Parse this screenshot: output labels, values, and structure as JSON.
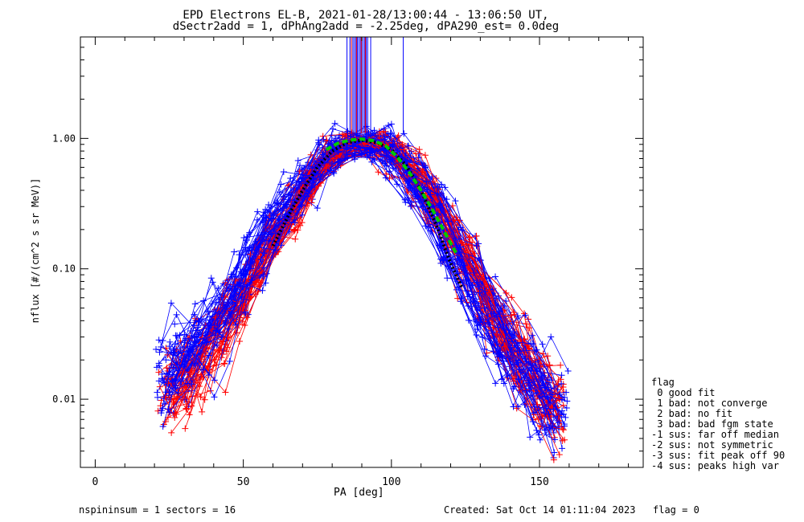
{
  "title_line1": "EPD Electrons EL-B, 2021-01-28/13:00:44 - 13:06:50 UT,",
  "title_line2": "dSectr2add = 1, dPhAng2add = -2.25deg, dPA290_est=   0.0deg",
  "footer": {
    "spins": "nspininsum =  1  sectors = 16",
    "created": "Created: Sat Oct 14 01:11:04 2023",
    "flag": "flag = 0"
  },
  "legend": {
    "title": "flag",
    "entries": [
      " 0 good fit",
      " 1 bad: not converge",
      " 2 bad: no fit",
      " 3 bad: bad fgm state",
      "-1 sus: far off median",
      "-2 sus: not symmetric",
      "-3 sus: fit peak off 90",
      "-4 sus: peaks high var"
    ]
  },
  "colors": {
    "series_red": "#ff0000",
    "series_blue": "#0000ff",
    "median_fit": "#000000",
    "model_fit": "#00cc00",
    "axes": "#000000"
  },
  "chart_data": {
    "type": "line",
    "title": "EPD Electrons EL-B, 2021-01-28/13:00:44 - 13:06:50 UT,",
    "subtitle": "dSectr2add = 1, dPhAng2add = -2.25deg, dPA290_est=   0.0deg",
    "xlabel": "PA [deg]",
    "ylabel": "nflux [#/(cm^2 s sr MeV)]",
    "xlim": [
      -5,
      185
    ],
    "ylim": [
      0.003,
      6.0
    ],
    "yscale": "log",
    "x_ticks": [
      0,
      50,
      100,
      150
    ],
    "y_ticks": [
      0.01,
      0.1,
      1.0
    ],
    "y_tick_labels": [
      "0.01",
      "0.10",
      "1.00"
    ],
    "grid": false,
    "legend_position": "right",
    "series": [
      {
        "name": "",
        "color": "#0000ff",
        "marker": "+",
        "x": [
          24,
          30,
          36,
          42,
          48,
          54,
          60,
          66,
          72,
          78,
          84,
          90,
          96,
          102,
          108,
          114,
          120,
          126,
          132,
          138,
          144,
          150,
          156
        ],
        "y": [
          0.016,
          0.02,
          0.028,
          0.04,
          0.07,
          0.12,
          0.2,
          0.32,
          0.5,
          0.72,
          0.88,
          0.92,
          0.88,
          0.72,
          0.5,
          0.3,
          0.16,
          0.09,
          0.05,
          0.028,
          0.017,
          0.012,
          0.009
        ]
      },
      {
        "name": "",
        "color": "#ff0000",
        "marker": "+",
        "x": [
          24,
          30,
          36,
          42,
          48,
          54,
          60,
          66,
          72,
          78,
          84,
          90,
          96,
          102,
          108,
          114,
          120,
          126,
          132,
          138,
          144,
          150,
          156
        ],
        "y": [
          0.011,
          0.014,
          0.02,
          0.03,
          0.05,
          0.09,
          0.16,
          0.27,
          0.45,
          0.68,
          0.85,
          0.9,
          0.86,
          0.7,
          0.5,
          0.32,
          0.18,
          0.1,
          0.055,
          0.03,
          0.018,
          0.011,
          0.008
        ]
      },
      {
        "name": "",
        "color": "#000000",
        "style": "dotted",
        "x": [
          60,
          65,
          70,
          75,
          80,
          85,
          90,
          95,
          100,
          105,
          110,
          115,
          120,
          124
        ],
        "y": [
          0.15,
          0.25,
          0.4,
          0.6,
          0.8,
          0.93,
          0.97,
          0.93,
          0.82,
          0.62,
          0.4,
          0.22,
          0.11,
          0.07
        ]
      },
      {
        "name": "",
        "color": "#00cc00",
        "style": "dashed",
        "x": [
          78,
          82,
          86,
          90,
          94,
          98,
          102,
          106,
          110,
          114,
          118,
          122
        ],
        "y": [
          0.82,
          0.92,
          0.97,
          0.99,
          0.96,
          0.88,
          0.72,
          0.55,
          0.4,
          0.28,
          0.19,
          0.13
        ]
      }
    ],
    "vertical_lines": {
      "color": "#0000ff",
      "x": [
        85,
        86,
        87,
        87.5,
        88,
        88.5,
        89,
        89.5,
        90,
        90.5,
        91,
        91.5,
        92,
        93,
        104
      ],
      "y_from": 1.1
    },
    "vertical_lines_red": {
      "color": "#ff0000",
      "x": [
        86.5,
        88.2,
        89.8,
        91.2
      ],
      "y_from": 1.1
    }
  }
}
